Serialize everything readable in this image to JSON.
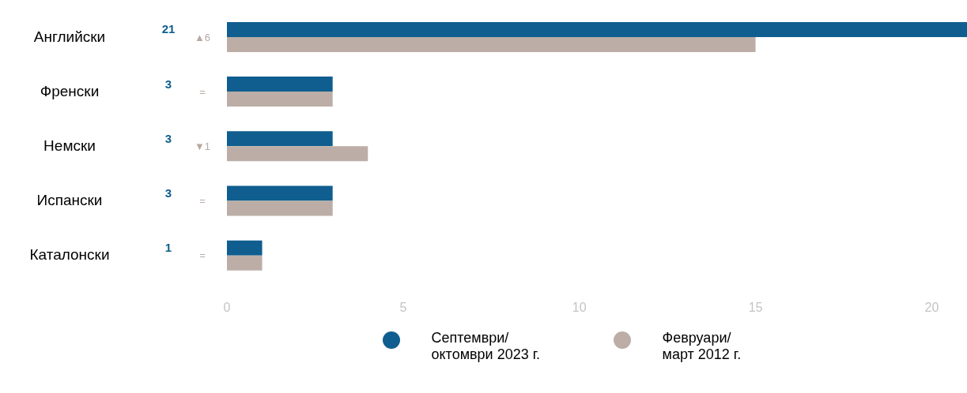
{
  "chart_data": {
    "type": "bar",
    "orientation": "horizontal",
    "categories": [
      "Английски",
      "Френски",
      "Немски",
      "Испански",
      "Каталонски"
    ],
    "series": [
      {
        "name": "Септември/ октомври 2023 г.",
        "color": "#0f5e8f",
        "values": [
          21,
          3,
          3,
          3,
          1
        ],
        "value_labels": [
          "21",
          "3",
          "3",
          "3",
          "1"
        ]
      },
      {
        "name": "Февруари/ март 2012 г.",
        "color": "#bcaea6",
        "values": [
          15,
          3,
          4,
          3,
          1
        ]
      }
    ],
    "annotations": [
      "▲6",
      "=",
      "▼1",
      "=",
      "="
    ],
    "xlim": [
      0,
      21
    ],
    "xticks": [
      0,
      5,
      10,
      15,
      20
    ],
    "legend": "bottom"
  }
}
